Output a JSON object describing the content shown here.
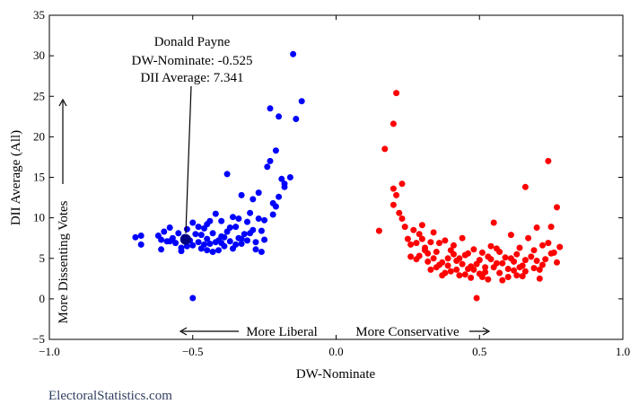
{
  "chart_data": {
    "type": "scatter",
    "title": "",
    "xlabel": "DW-Nominate",
    "ylabel": "DII Average (All)",
    "xlim": [
      -1.0,
      1.0
    ],
    "ylim": [
      -5,
      35
    ],
    "x_ticks": [
      "−1.0",
      "−0.5",
      "0.0",
      "0.5",
      "1.0"
    ],
    "y_ticks": [
      "−5",
      "0",
      "5",
      "10",
      "15",
      "20",
      "25",
      "30",
      "35"
    ],
    "grid": false,
    "annotations": {
      "name": "Donald Payne",
      "dw": "DW-Nominate: -0.525",
      "dii": "DII Average: 7.341",
      "liberal": "More Liberal",
      "conservative": "More Conservative",
      "dissent": "More Dissenting Votes"
    },
    "highlight": {
      "x": -0.525,
      "y": 7.341,
      "color": "#000080"
    },
    "series": [
      {
        "color": "#0000ff",
        "points": [
          [
            -0.7,
            7.6
          ],
          [
            -0.68,
            7.8
          ],
          [
            -0.68,
            6.7
          ],
          [
            -0.62,
            7.8
          ],
          [
            -0.61,
            6.1
          ],
          [
            -0.61,
            7.3
          ],
          [
            -0.6,
            8.3
          ],
          [
            -0.59,
            7.1
          ],
          [
            -0.58,
            8.8
          ],
          [
            -0.57,
            7.5
          ],
          [
            -0.56,
            6.9
          ],
          [
            -0.55,
            8.1
          ],
          [
            -0.54,
            6.3
          ],
          [
            -0.53,
            7.6
          ],
          [
            -0.52,
            8.6
          ],
          [
            -0.51,
            7.2
          ],
          [
            -0.5,
            9.4
          ],
          [
            -0.5,
            6.6
          ],
          [
            -0.49,
            8.0
          ],
          [
            -0.48,
            7.0
          ],
          [
            -0.47,
            6.2
          ],
          [
            -0.46,
            8.7
          ],
          [
            -0.45,
            9.2
          ],
          [
            -0.45,
            7.4
          ],
          [
            -0.44,
            6.8
          ],
          [
            -0.43,
            8.1
          ],
          [
            -0.42,
            10.5
          ],
          [
            -0.42,
            7.0
          ],
          [
            -0.41,
            6.0
          ],
          [
            -0.4,
            7.7
          ],
          [
            -0.4,
            9.6
          ],
          [
            -0.39,
            6.5
          ],
          [
            -0.38,
            8.3
          ],
          [
            -0.37,
            7.1
          ],
          [
            -0.36,
            10.1
          ],
          [
            -0.36,
            6.2
          ],
          [
            -0.35,
            8.9
          ],
          [
            -0.34,
            7.5
          ],
          [
            -0.34,
            9.9
          ],
          [
            -0.33,
            6.8
          ],
          [
            -0.32,
            8.0
          ],
          [
            -0.31,
            9.5
          ],
          [
            -0.31,
            7.2
          ],
          [
            -0.3,
            10.6
          ],
          [
            -0.29,
            8.5
          ],
          [
            -0.28,
            7.0
          ],
          [
            -0.27,
            9.9
          ],
          [
            -0.26,
            8.4
          ],
          [
            -0.25,
            7.3
          ],
          [
            -0.25,
            9.7
          ],
          [
            -0.24,
            16.3
          ],
          [
            -0.23,
            17.0
          ],
          [
            -0.22,
            11.8
          ],
          [
            -0.22,
            10.4
          ],
          [
            -0.21,
            11.4
          ],
          [
            -0.21,
            18.3
          ],
          [
            -0.2,
            12.6
          ],
          [
            -0.19,
            14.8
          ],
          [
            -0.18,
            13.8
          ],
          [
            -0.18,
            14.2
          ],
          [
            -0.16,
            15.0
          ],
          [
            -0.2,
            22.5
          ],
          [
            -0.23,
            23.5
          ],
          [
            -0.14,
            22.2
          ],
          [
            -0.12,
            24.4
          ],
          [
            -0.15,
            30.2
          ],
          [
            -0.33,
            12.8
          ],
          [
            -0.29,
            12.3
          ],
          [
            -0.27,
            13.1
          ],
          [
            -0.38,
            15.4
          ],
          [
            -0.5,
            0.1
          ],
          [
            -0.26,
            5.8
          ],
          [
            -0.58,
            7.1
          ],
          [
            -0.54,
            5.9
          ],
          [
            -0.52,
            6.5
          ],
          [
            -0.47,
            7.9
          ],
          [
            -0.45,
            6.0
          ],
          [
            -0.43,
            5.8
          ],
          [
            -0.41,
            7.2
          ],
          [
            -0.39,
            7.6
          ],
          [
            -0.37,
            8.8
          ],
          [
            -0.35,
            6.7
          ],
          [
            -0.33,
            7.4
          ],
          [
            -0.3,
            8.1
          ],
          [
            -0.28,
            6.1
          ],
          [
            -0.46,
            6.7
          ],
          [
            -0.48,
            8.9
          ],
          [
            -0.44,
            9.6
          ],
          [
            -0.4,
            6.9
          ]
        ]
      },
      {
        "color": "#ff0000",
        "points": [
          [
            0.15,
            8.4
          ],
          [
            0.17,
            18.5
          ],
          [
            0.2,
            21.6
          ],
          [
            0.21,
            25.4
          ],
          [
            0.2,
            13.6
          ],
          [
            0.21,
            12.8
          ],
          [
            0.23,
            14.2
          ],
          [
            0.2,
            11.6
          ],
          [
            0.22,
            10.6
          ],
          [
            0.23,
            9.9
          ],
          [
            0.24,
            8.9
          ],
          [
            0.25,
            7.4
          ],
          [
            0.26,
            6.7
          ],
          [
            0.26,
            5.2
          ],
          [
            0.27,
            8.5
          ],
          [
            0.28,
            6.9
          ],
          [
            0.29,
            5.3
          ],
          [
            0.3,
            9.1
          ],
          [
            0.3,
            7.4
          ],
          [
            0.31,
            6.0
          ],
          [
            0.32,
            4.6
          ],
          [
            0.33,
            3.6
          ],
          [
            0.34,
            8.2
          ],
          [
            0.35,
            5.8
          ],
          [
            0.36,
            4.2
          ],
          [
            0.37,
            2.9
          ],
          [
            0.38,
            7.2
          ],
          [
            0.39,
            5.0
          ],
          [
            0.4,
            3.4
          ],
          [
            0.41,
            6.6
          ],
          [
            0.42,
            4.7
          ],
          [
            0.43,
            2.9
          ],
          [
            0.44,
            7.5
          ],
          [
            0.45,
            5.4
          ],
          [
            0.46,
            3.7
          ],
          [
            0.47,
            2.6
          ],
          [
            0.48,
            6.1
          ],
          [
            0.49,
            4.3
          ],
          [
            0.5,
            3.1
          ],
          [
            0.51,
            5.7
          ],
          [
            0.52,
            3.9
          ],
          [
            0.53,
            2.4
          ],
          [
            0.54,
            6.5
          ],
          [
            0.55,
            9.4
          ],
          [
            0.56,
            4.4
          ],
          [
            0.57,
            3.2
          ],
          [
            0.58,
            2.3
          ],
          [
            0.59,
            5.1
          ],
          [
            0.6,
            3.7
          ],
          [
            0.61,
            7.9
          ],
          [
            0.62,
            4.6
          ],
          [
            0.63,
            2.9
          ],
          [
            0.64,
            6.3
          ],
          [
            0.65,
            4.1
          ],
          [
            0.66,
            3.4
          ],
          [
            0.67,
            7.5
          ],
          [
            0.68,
            5.2
          ],
          [
            0.69,
            3.8
          ],
          [
            0.7,
            8.8
          ],
          [
            0.71,
            2.5
          ],
          [
            0.72,
            6.6
          ],
          [
            0.73,
            4.9
          ],
          [
            0.74,
            17.0
          ],
          [
            0.75,
            8.9
          ],
          [
            0.76,
            5.7
          ],
          [
            0.77,
            11.3
          ],
          [
            0.78,
            6.4
          ],
          [
            0.66,
            13.8
          ],
          [
            0.49,
            0.1
          ],
          [
            0.31,
            6.3
          ],
          [
            0.34,
            5.0
          ],
          [
            0.36,
            6.9
          ],
          [
            0.39,
            4.1
          ],
          [
            0.42,
            3.6
          ],
          [
            0.44,
            4.3
          ],
          [
            0.46,
            5.6
          ],
          [
            0.5,
            4.8
          ],
          [
            0.52,
            3.3
          ],
          [
            0.54,
            4.9
          ],
          [
            0.57,
            5.8
          ],
          [
            0.6,
            2.7
          ],
          [
            0.63,
            5.5
          ],
          [
            0.66,
            4.8
          ],
          [
            0.69,
            6.0
          ],
          [
            0.71,
            3.6
          ],
          [
            0.74,
            6.9
          ],
          [
            0.77,
            4.5
          ],
          [
            0.28,
            4.9
          ],
          [
            0.33,
            7.0
          ],
          [
            0.38,
            3.2
          ],
          [
            0.41,
            5.5
          ],
          [
            0.45,
            3.0
          ],
          [
            0.48,
            3.6
          ],
          [
            0.51,
            2.7
          ],
          [
            0.55,
            3.9
          ],
          [
            0.58,
            4.4
          ],
          [
            0.62,
            3.5
          ],
          [
            0.65,
            2.8
          ],
          [
            0.7,
            4.7
          ],
          [
            0.75,
            5.6
          ],
          [
            0.35,
            3.9
          ],
          [
            0.4,
            6.0
          ],
          [
            0.47,
            4.0
          ],
          [
            0.53,
            5.2
          ],
          [
            0.56,
            6.2
          ],
          [
            0.64,
            3.9
          ],
          [
            0.72,
            4.2
          ],
          [
            0.29,
            8.0
          ],
          [
            0.32,
            5.6
          ],
          [
            0.37,
            4.5
          ],
          [
            0.43,
            5.0
          ],
          [
            0.61,
            5.0
          ]
        ]
      }
    ]
  },
  "watermark": "ElectoralStatistics.com"
}
